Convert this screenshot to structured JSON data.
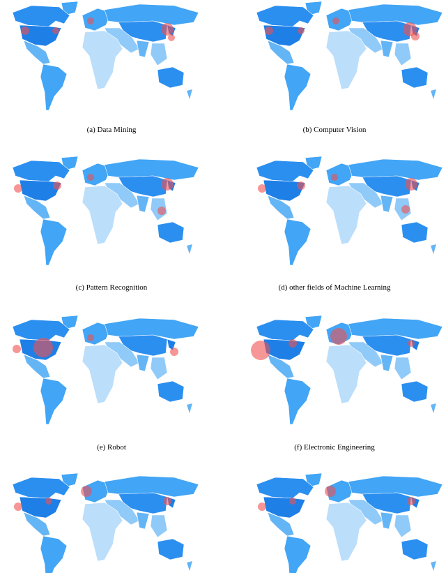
{
  "figure": {
    "captions": [
      "(a) Data Mining",
      "(b) Computer Vision",
      "(c) Pattern Recognition",
      "(d) other fields of Machine Learning",
      "(e) Robot",
      "(f) Electronic Engineering"
    ]
  }
}
